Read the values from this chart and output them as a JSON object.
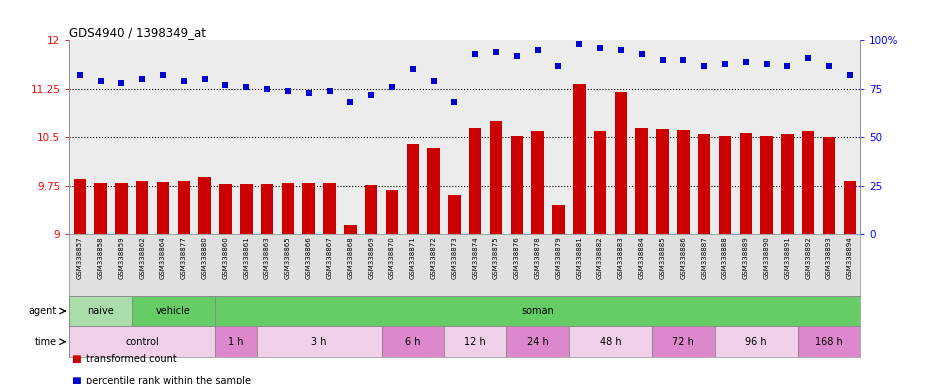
{
  "title": "GDS4940 / 1398349_at",
  "samples": [
    "GSM338857",
    "GSM338858",
    "GSM338859",
    "GSM338862",
    "GSM338864",
    "GSM338877",
    "GSM338880",
    "GSM338860",
    "GSM338861",
    "GSM338863",
    "GSM338865",
    "GSM338866",
    "GSM338867",
    "GSM338868",
    "GSM338869",
    "GSM338870",
    "GSM338871",
    "GSM338872",
    "GSM338873",
    "GSM338874",
    "GSM338875",
    "GSM338876",
    "GSM338878",
    "GSM338879",
    "GSM338881",
    "GSM338882",
    "GSM338883",
    "GSM338884",
    "GSM338885",
    "GSM338886",
    "GSM338887",
    "GSM338888",
    "GSM338889",
    "GSM338890",
    "GSM338891",
    "GSM338892",
    "GSM338893",
    "GSM338894"
  ],
  "bar_values": [
    9.85,
    9.8,
    9.8,
    9.83,
    9.81,
    9.82,
    9.88,
    9.78,
    9.77,
    9.77,
    9.79,
    9.79,
    9.79,
    9.15,
    9.76,
    9.68,
    10.4,
    10.33,
    9.6,
    10.65,
    10.75,
    10.52,
    10.6,
    9.45,
    11.32,
    10.6,
    11.2,
    10.65,
    10.63,
    10.62,
    10.55,
    10.52,
    10.57,
    10.52,
    10.55,
    10.6,
    10.5,
    9.82
  ],
  "percentile_values": [
    82,
    79,
    78,
    80,
    82,
    79,
    80,
    77,
    76,
    75,
    74,
    73,
    74,
    68,
    72,
    76,
    85,
    79,
    68,
    93,
    94,
    92,
    95,
    87,
    98,
    96,
    95,
    93,
    90,
    90,
    87,
    88,
    89,
    88,
    87,
    91,
    87,
    82
  ],
  "bar_color": "#cc0000",
  "percentile_color": "#0000cc",
  "y_min": 9.0,
  "y_max": 12.0,
  "yticks_left": [
    9.0,
    9.75,
    10.5,
    11.25,
    12.0
  ],
  "ytick_labels_left": [
    "9",
    "9.75",
    "10.5",
    "11.25",
    "12"
  ],
  "yticks_right": [
    0,
    25,
    50,
    75,
    100
  ],
  "ytick_labels_right": [
    "0",
    "25",
    "50",
    "75",
    "100%"
  ],
  "hlines": [
    9.75,
    10.5,
    11.25
  ],
  "agent_sections": [
    {
      "start": 0,
      "end": 3,
      "label": "naive",
      "color": "#aaddaa"
    },
    {
      "start": 3,
      "end": 7,
      "label": "vehicle",
      "color": "#66cc66"
    },
    {
      "start": 7,
      "end": 38,
      "label": "soman",
      "color": "#66cc66"
    }
  ],
  "time_sections": [
    {
      "start": 0,
      "end": 7,
      "label": "control",
      "color": "#f0d0e8"
    },
    {
      "start": 7,
      "end": 9,
      "label": "1 h",
      "color": "#dd88cc"
    },
    {
      "start": 9,
      "end": 15,
      "label": "3 h",
      "color": "#f0d0e8"
    },
    {
      "start": 15,
      "end": 18,
      "label": "6 h",
      "color": "#dd88cc"
    },
    {
      "start": 18,
      "end": 21,
      "label": "12 h",
      "color": "#f0d0e8"
    },
    {
      "start": 21,
      "end": 24,
      "label": "24 h",
      "color": "#dd88cc"
    },
    {
      "start": 24,
      "end": 28,
      "label": "48 h",
      "color": "#f0d0e8"
    },
    {
      "start": 28,
      "end": 31,
      "label": "72 h",
      "color": "#dd88cc"
    },
    {
      "start": 31,
      "end": 35,
      "label": "96 h",
      "color": "#f0d0e8"
    },
    {
      "start": 35,
      "end": 38,
      "label": "168 h",
      "color": "#dd88cc"
    }
  ],
  "plot_bg_color": "#ececec",
  "legend_items": [
    {
      "color": "#cc0000",
      "label": "transformed count"
    },
    {
      "color": "#0000cc",
      "label": "percentile rank within the sample"
    }
  ]
}
